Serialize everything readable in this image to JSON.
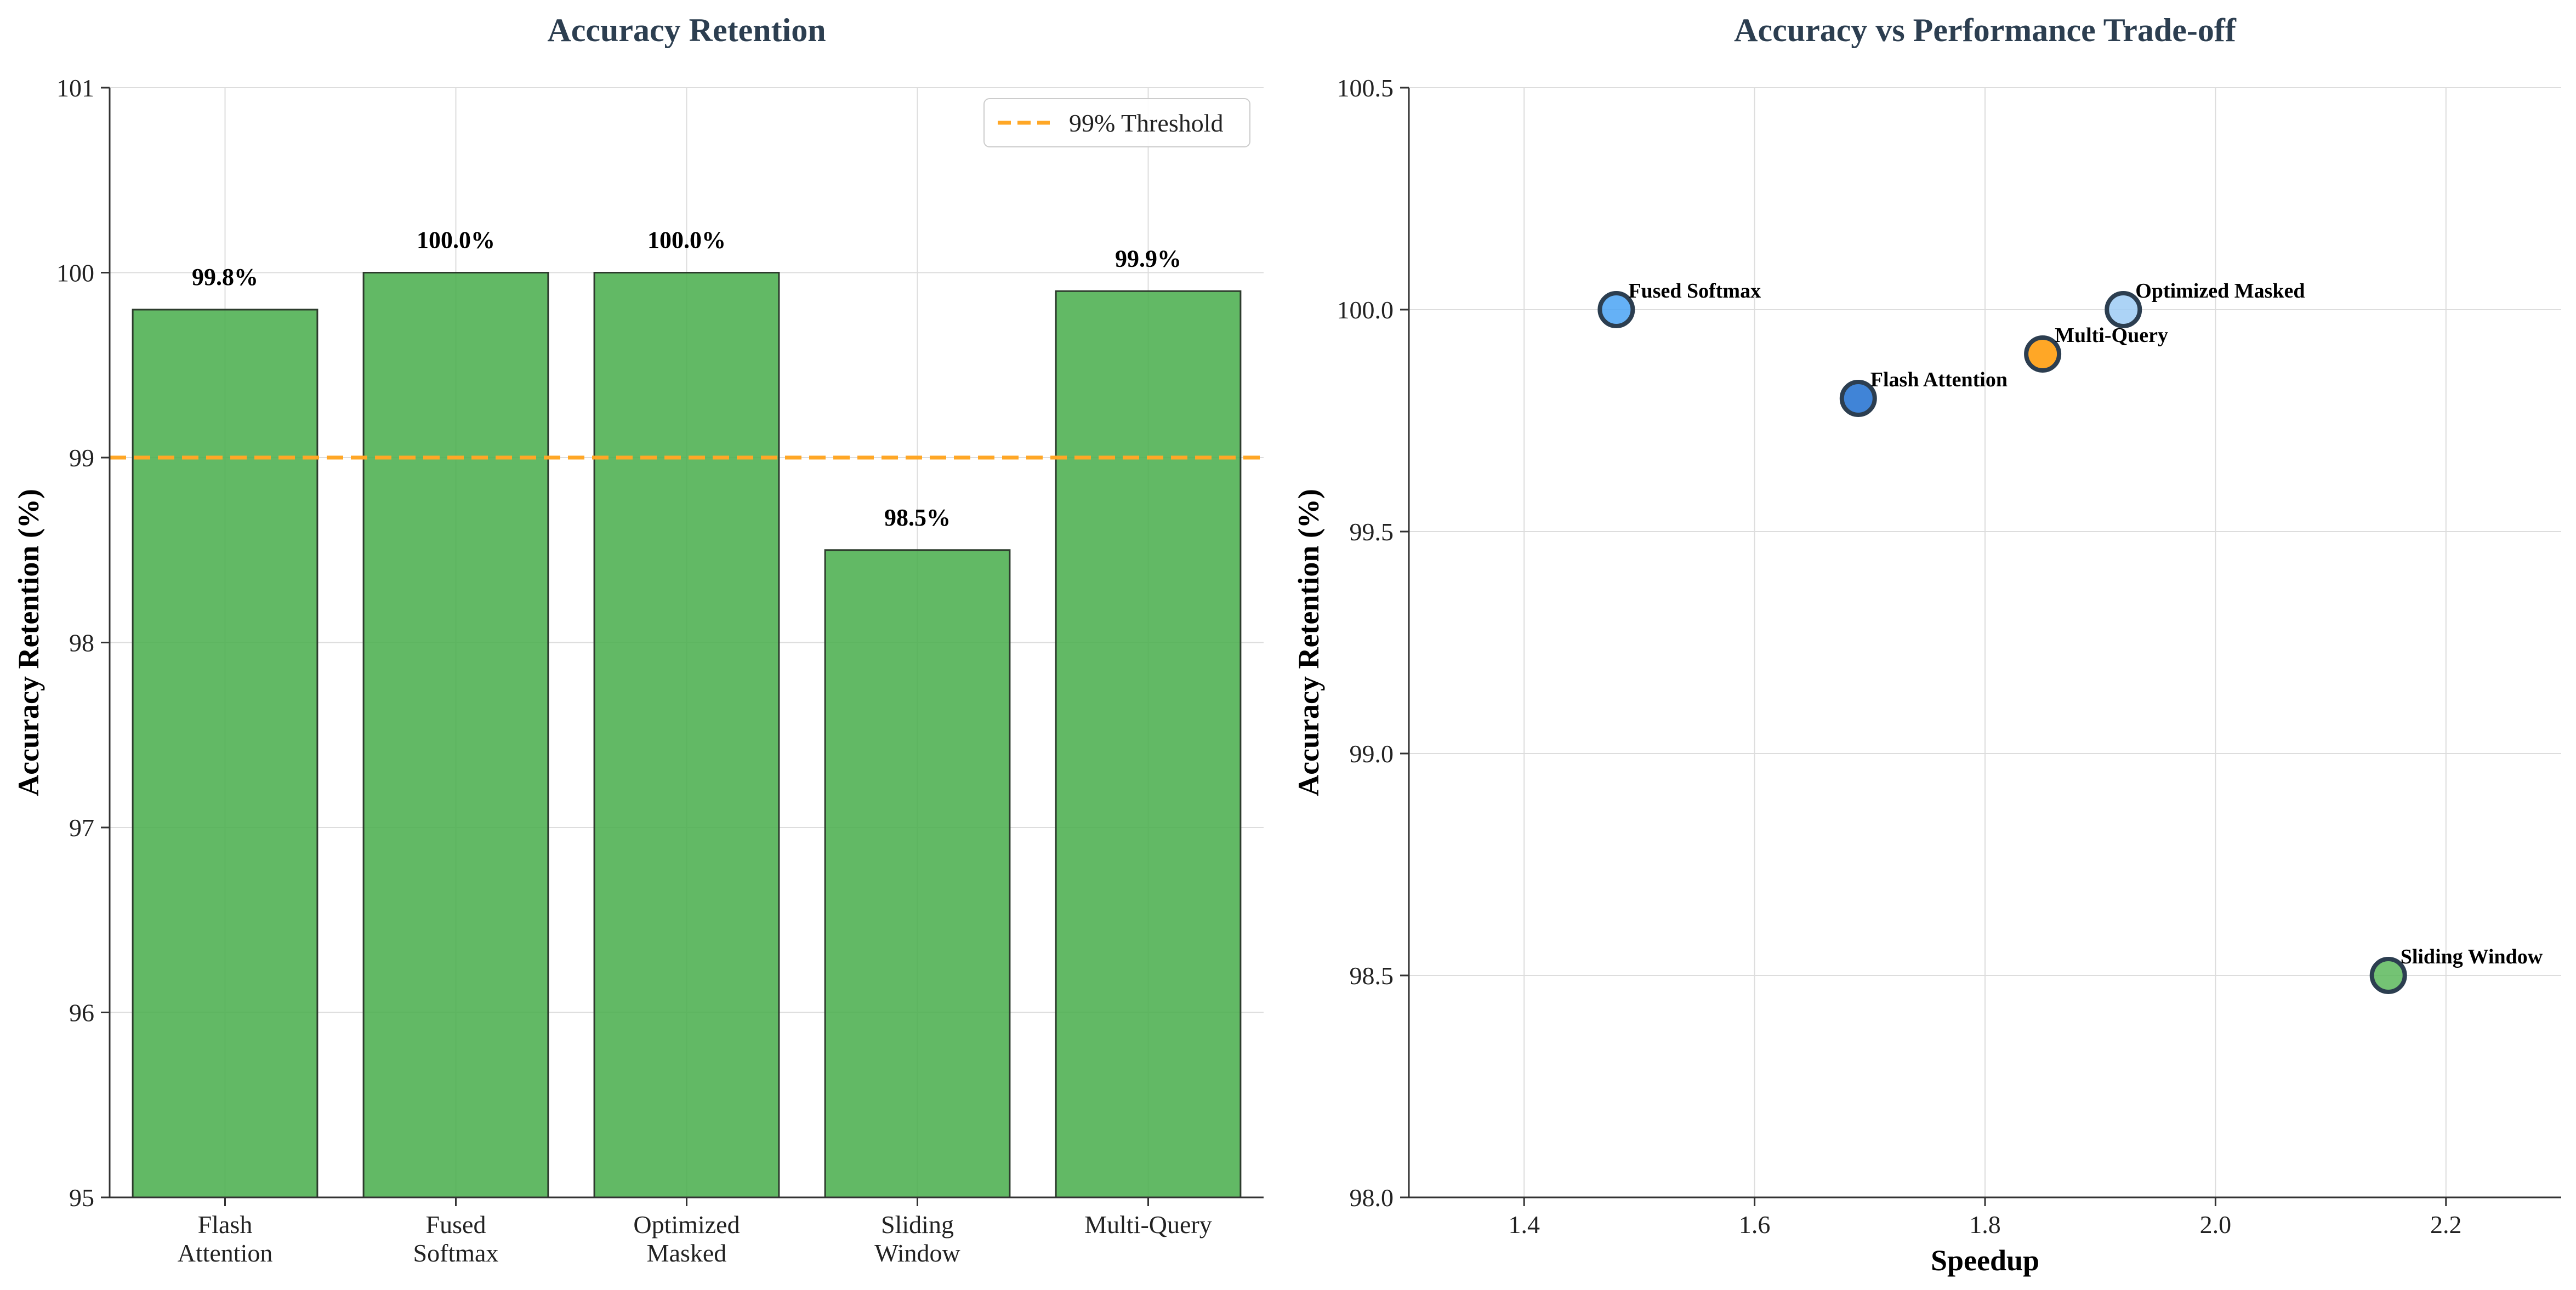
{
  "chart_data": [
    {
      "type": "bar",
      "title": "Accuracy Retention",
      "xlabel": "",
      "ylabel": "Accuracy Retention (%)",
      "categories": [
        "Flash\nAttention",
        "Fused\nSoftmax",
        "Optimized\nMasked",
        "Sliding\nWindow",
        "Multi-Query"
      ],
      "values": [
        99.8,
        100.0,
        100.0,
        98.5,
        99.9
      ],
      "value_labels": [
        "99.8%",
        "100.0%",
        "100.0%",
        "98.5%",
        "99.9%"
      ],
      "ylim": [
        95,
        101
      ],
      "yticks": [
        95,
        96,
        97,
        98,
        99,
        100,
        101
      ],
      "bar_color": "#4caf50",
      "threshold": {
        "value": 99,
        "label": "99% Threshold",
        "color": "#ffa726"
      },
      "legend": "top-right",
      "grid": true
    },
    {
      "type": "scatter",
      "title": "Accuracy vs Performance Trade-off",
      "xlabel": "Speedup",
      "ylabel": "Accuracy Retention (%)",
      "xlim": [
        1.3,
        2.3
      ],
      "ylim": [
        98.0,
        100.5
      ],
      "xticks": [
        "1.4",
        "1.6",
        "1.8",
        "2.0",
        "2.2"
      ],
      "yticks": [
        "98.0",
        "98.5",
        "99.0",
        "99.5",
        "100.0",
        "100.5"
      ],
      "grid": true,
      "points": [
        {
          "name": "Flash Attention",
          "x": 1.69,
          "y": 99.8,
          "color": "#1f6fd0"
        },
        {
          "name": "Fused Softmax",
          "x": 1.48,
          "y": 100.0,
          "color": "#4aa3f5"
        },
        {
          "name": "Optimized Masked",
          "x": 1.92,
          "y": 100.0,
          "color": "#9ecbf5"
        },
        {
          "name": "Sliding Window",
          "x": 2.15,
          "y": 98.5,
          "color": "#5cb85c"
        },
        {
          "name": "Multi-Query",
          "x": 1.85,
          "y": 99.9,
          "color": "#ff9800"
        }
      ]
    }
  ]
}
